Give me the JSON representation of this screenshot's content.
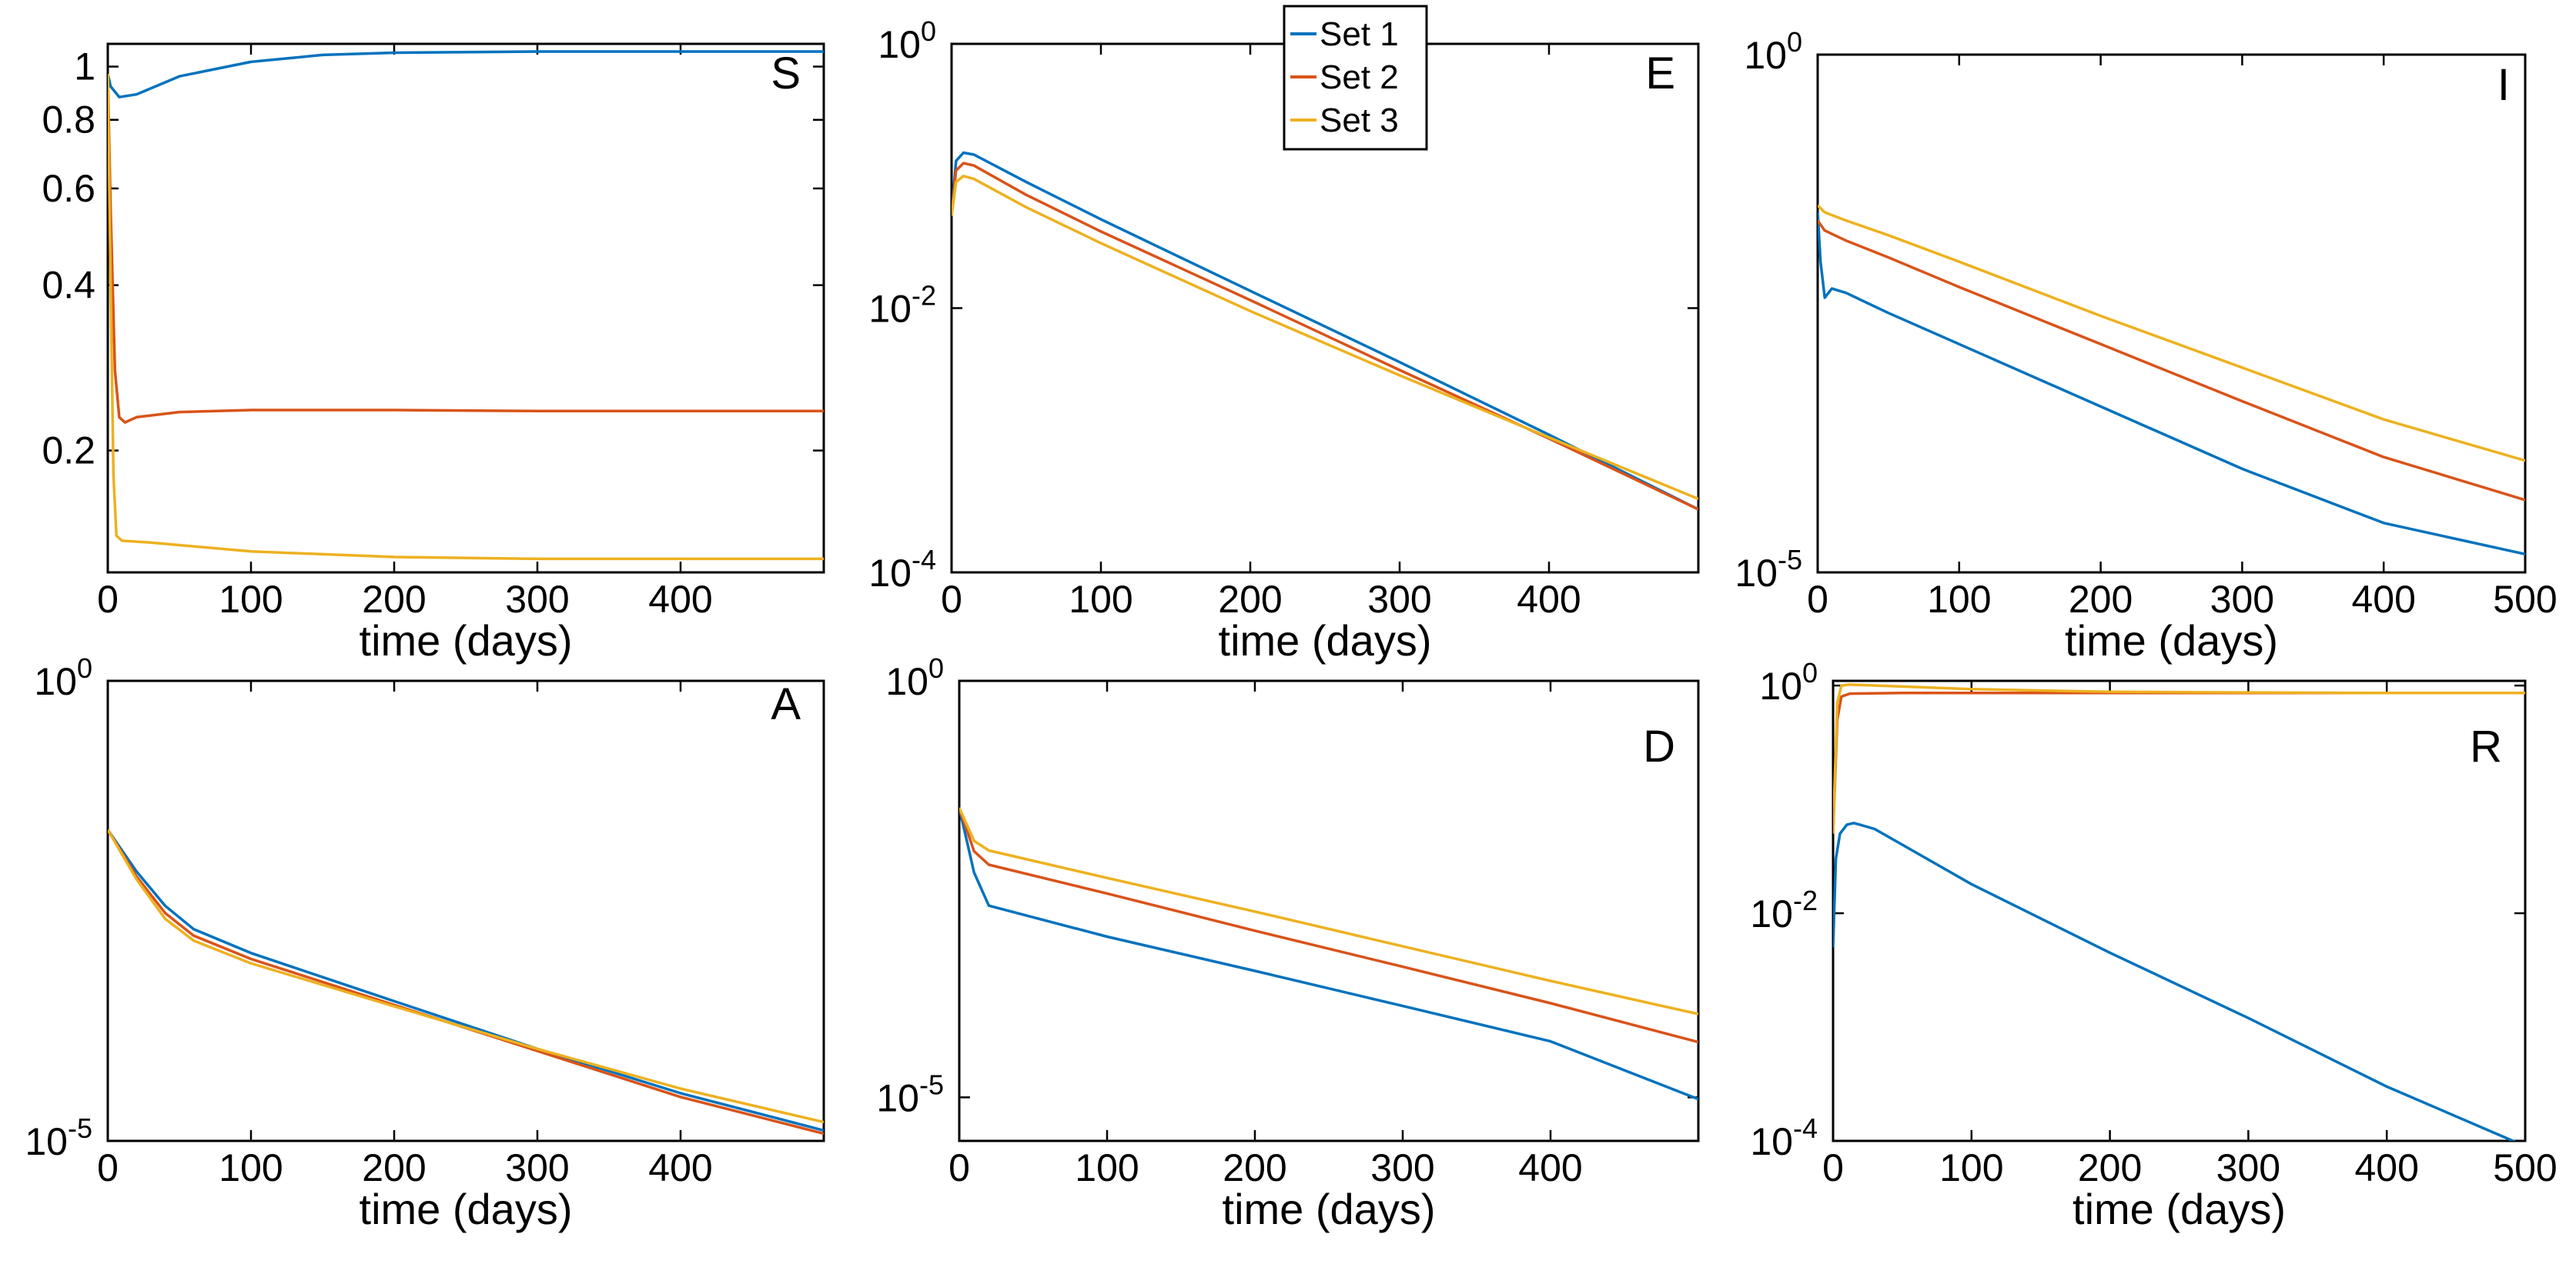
{
  "colors": {
    "set1": "#0072BD",
    "set2": "#D95319",
    "set3": "#EDB120"
  },
  "legend": [
    "Set 1",
    "Set 2",
    "Set 3"
  ],
  "chart_data": [
    {
      "type": "line",
      "panel": "S",
      "scale": "log",
      "xlabel": "time (days)",
      "xlim": [
        0,
        500
      ],
      "xticks": [
        0,
        100,
        200,
        300,
        400
      ],
      "ylim": [
        0.12,
        1.1
      ],
      "yticks": [
        1,
        0.8,
        0.6,
        0.4,
        0.2
      ],
      "ytick_labels": [
        "1",
        "0.8",
        "0.6",
        "0.4",
        "0.2"
      ],
      "series": [
        {
          "name": "Set 1",
          "x": [
            0,
            2,
            8,
            20,
            50,
            100,
            150,
            200,
            300,
            400,
            500
          ],
          "y": [
            0.97,
            0.92,
            0.88,
            0.89,
            0.96,
            1.02,
            1.05,
            1.06,
            1.065,
            1.065,
            1.065
          ]
        },
        {
          "name": "Set 2",
          "x": [
            0,
            2,
            5,
            8,
            12,
            20,
            50,
            100,
            200,
            300,
            400,
            500
          ],
          "y": [
            0.97,
            0.55,
            0.28,
            0.23,
            0.225,
            0.23,
            0.235,
            0.237,
            0.237,
            0.236,
            0.236,
            0.236
          ]
        },
        {
          "name": "Set 3",
          "x": [
            0,
            2,
            4,
            6,
            10,
            30,
            100,
            200,
            300,
            400,
            500
          ],
          "y": [
            0.97,
            0.4,
            0.18,
            0.14,
            0.137,
            0.136,
            0.131,
            0.128,
            0.127,
            0.127,
            0.127
          ]
        }
      ]
    },
    {
      "type": "line",
      "panel": "E",
      "scale": "log",
      "xlabel": "time (days)",
      "xlim": [
        0,
        500
      ],
      "xticks": [
        0,
        100,
        200,
        300,
        400
      ],
      "ylim": [
        0.0001,
        1
      ],
      "yticks": [
        1,
        0.01,
        0.0001
      ],
      "ytick_labels": [
        [
          "10",
          "0"
        ],
        [
          "10",
          "-2"
        ],
        [
          "10",
          "-4"
        ]
      ],
      "series": [
        {
          "name": "Set 1",
          "x": [
            0,
            3,
            8,
            15,
            50,
            100,
            200,
            300,
            400,
            500
          ],
          "y": [
            0.05,
            0.13,
            0.15,
            0.145,
            0.09,
            0.047,
            0.0135,
            0.0039,
            0.0011,
            0.0003
          ]
        },
        {
          "name": "Set 2",
          "x": [
            0,
            3,
            8,
            15,
            50,
            100,
            200,
            300,
            400,
            500
          ],
          "y": [
            0.05,
            0.11,
            0.125,
            0.12,
            0.072,
            0.038,
            0.0115,
            0.0034,
            0.00103,
            0.0003
          ]
        },
        {
          "name": "Set 3",
          "x": [
            0,
            3,
            8,
            15,
            50,
            100,
            200,
            300,
            400,
            500
          ],
          "y": [
            0.05,
            0.09,
            0.1,
            0.095,
            0.058,
            0.031,
            0.0095,
            0.0031,
            0.00105,
            0.00036
          ]
        }
      ]
    },
    {
      "type": "line",
      "panel": "I",
      "scale": "log",
      "xlabel": "time (days)",
      "xlim": [
        0,
        500
      ],
      "xticks": [
        0,
        100,
        200,
        300,
        400,
        500
      ],
      "ylim": [
        1e-05,
        1
      ],
      "yticks": [
        1,
        1e-05
      ],
      "ytick_labels": [
        [
          "10",
          "0"
        ],
        [
          "10",
          "-5"
        ]
      ],
      "series": [
        {
          "name": "Set 1",
          "x": [
            0,
            2,
            5,
            10,
            20,
            50,
            100,
            200,
            300,
            400,
            500
          ],
          "y": [
            0.03,
            0.01,
            0.0045,
            0.0055,
            0.005,
            0.0032,
            0.0016,
            0.0004,
            0.0001,
            3e-05,
            1.5e-05
          ]
        },
        {
          "name": "Set 2",
          "x": [
            0,
            5,
            20,
            50,
            100,
            200,
            300,
            400,
            500
          ],
          "y": [
            0.025,
            0.02,
            0.016,
            0.011,
            0.0057,
            0.0016,
            0.00045,
            0.00013,
            5e-05
          ]
        },
        {
          "name": "Set 3",
          "x": [
            0,
            5,
            20,
            50,
            100,
            200,
            300,
            400,
            500
          ],
          "y": [
            0.035,
            0.03,
            0.025,
            0.018,
            0.01,
            0.003,
            0.00095,
            0.0003,
            0.00012
          ]
        }
      ]
    },
    {
      "type": "line",
      "panel": "A",
      "scale": "log",
      "xlabel": "time (days)",
      "xlim": [
        0,
        500
      ],
      "xticks": [
        0,
        100,
        200,
        300,
        400
      ],
      "ylim": [
        1e-05,
        1
      ],
      "yticks": [
        1,
        1e-05
      ],
      "ytick_labels": [
        [
          "10",
          "0"
        ],
        [
          "10",
          "-5"
        ]
      ],
      "series": [
        {
          "name": "Set 1",
          "x": [
            0,
            20,
            40,
            60,
            100,
            200,
            300,
            400,
            500
          ],
          "y": [
            0.024,
            0.0085,
            0.0036,
            0.002,
            0.0011,
            0.00033,
            0.0001,
            3.3e-05,
            1.3e-05
          ]
        },
        {
          "name": "Set 2",
          "x": [
            0,
            20,
            40,
            60,
            100,
            200,
            300,
            400,
            500
          ],
          "y": [
            0.024,
            0.0075,
            0.003,
            0.0017,
            0.00095,
            0.0003,
            9.5e-05,
            3e-05,
            1.2e-05
          ]
        },
        {
          "name": "Set 3",
          "x": [
            0,
            20,
            40,
            60,
            100,
            200,
            300,
            400,
            500
          ],
          "y": [
            0.024,
            0.007,
            0.0026,
            0.0015,
            0.00085,
            0.00029,
            0.0001,
            3.7e-05,
            1.6e-05
          ]
        }
      ]
    },
    {
      "type": "line",
      "panel": "D",
      "scale": "log",
      "xlabel": "time (days)",
      "xlim": [
        0,
        500
      ],
      "xticks": [
        0,
        100,
        200,
        300,
        400
      ],
      "ylim": [
        3e-06,
        1
      ],
      "yticks": [
        1,
        1e-05
      ],
      "ytick_labels": [
        [
          "10",
          "0"
        ],
        [
          "10",
          "-5"
        ]
      ],
      "series": [
        {
          "name": "Set 1",
          "x": [
            0,
            10,
            20,
            100,
            200,
            300,
            400,
            500
          ],
          "y": [
            0.03,
            0.005,
            0.002,
            0.00085,
            0.00033,
            0.000125,
            4.7e-05,
            9.5e-06
          ]
        },
        {
          "name": "Set 2",
          "x": [
            0,
            10,
            20,
            100,
            200,
            300,
            400,
            500
          ],
          "y": [
            0.03,
            0.009,
            0.0062,
            0.0028,
            0.001,
            0.00037,
            0.000135,
            4.6e-05
          ]
        },
        {
          "name": "Set 3",
          "x": [
            0,
            10,
            20,
            100,
            200,
            300,
            400,
            500
          ],
          "y": [
            0.03,
            0.012,
            0.0092,
            0.0043,
            0.0017,
            0.00065,
            0.00025,
            0.0001
          ]
        }
      ]
    },
    {
      "type": "line",
      "panel": "R",
      "scale": "log",
      "xlabel": "time (days)",
      "xlim": [
        0,
        500
      ],
      "xticks": [
        0,
        100,
        200,
        300,
        400,
        500
      ],
      "ylim": [
        0.0001,
        1.1
      ],
      "yticks": [
        1,
        0.01,
        0.0001
      ],
      "ytick_labels": [
        [
          "10",
          "0"
        ],
        [
          "10",
          "-2"
        ],
        [
          "10",
          "-4"
        ]
      ],
      "series": [
        {
          "name": "Set 1",
          "x": [
            0,
            2,
            5,
            10,
            15,
            30,
            50,
            100,
            200,
            300,
            400,
            500
          ],
          "y": [
            0.005,
            0.03,
            0.05,
            0.06,
            0.062,
            0.055,
            0.04,
            0.018,
            0.0045,
            0.0012,
            0.0003,
            9e-05
          ]
        },
        {
          "name": "Set 2",
          "x": [
            0,
            3,
            6,
            12,
            50,
            100,
            200,
            300,
            400,
            500
          ],
          "y": [
            0.05,
            0.5,
            0.8,
            0.85,
            0.86,
            0.86,
            0.86,
            0.86,
            0.86,
            0.86
          ]
        },
        {
          "name": "Set 3",
          "x": [
            0,
            3,
            6,
            12,
            50,
            100,
            200,
            300,
            400,
            500
          ],
          "y": [
            0.05,
            0.7,
            1.0,
            1.02,
            0.98,
            0.93,
            0.88,
            0.87,
            0.86,
            0.86
          ]
        }
      ]
    }
  ]
}
